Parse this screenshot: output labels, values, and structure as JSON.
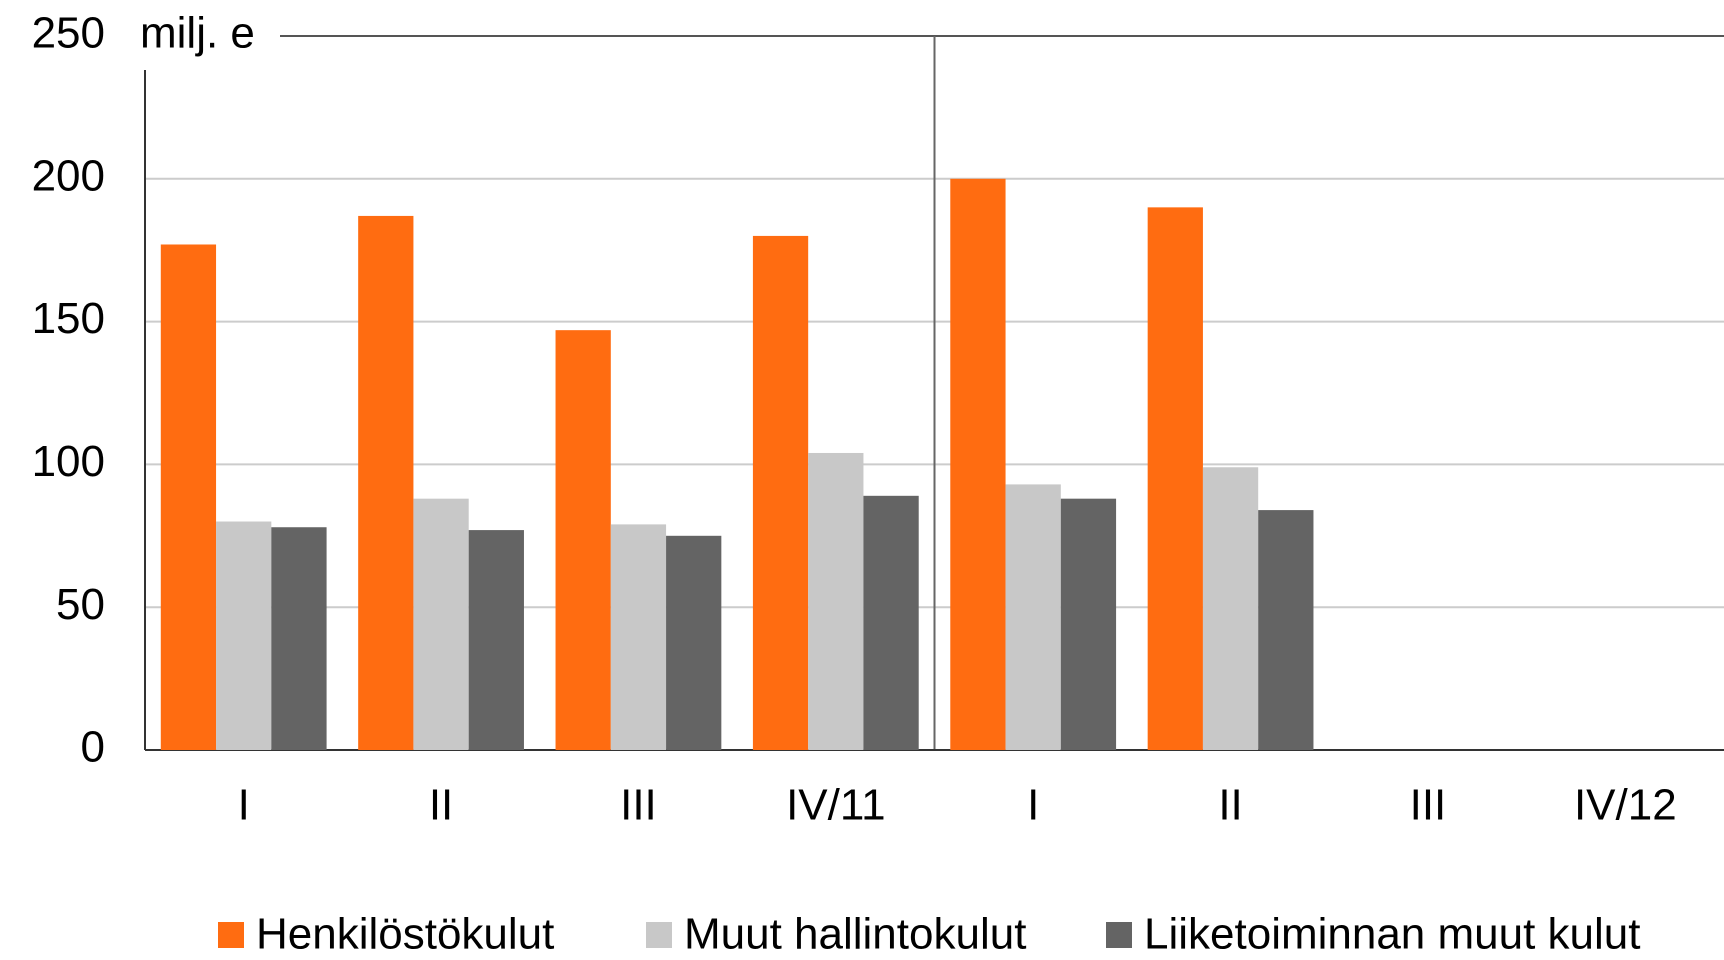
{
  "chart_data": {
    "type": "bar",
    "unit_label": "milj. e",
    "categories": [
      "I",
      "II",
      "III",
      "IV/11",
      "I",
      "II",
      "III",
      "IV/12"
    ],
    "series": [
      {
        "name": "Henkilöstökulut",
        "color": "#ff6c11",
        "values": [
          177,
          187,
          147,
          180,
          200,
          190,
          null,
          null
        ]
      },
      {
        "name": "Muut hallintokulut",
        "color": "#c8c8c8",
        "values": [
          80,
          88,
          79,
          104,
          93,
          99,
          null,
          null
        ]
      },
      {
        "name": "Liiketoiminnan muut kulut",
        "color": "#646464",
        "values": [
          78,
          77,
          75,
          89,
          88,
          84,
          null,
          null
        ]
      }
    ],
    "ylim": [
      0,
      250
    ],
    "yticks": [
      0,
      50,
      100,
      150,
      200,
      250
    ],
    "grid": true,
    "legend": "bottom"
  }
}
